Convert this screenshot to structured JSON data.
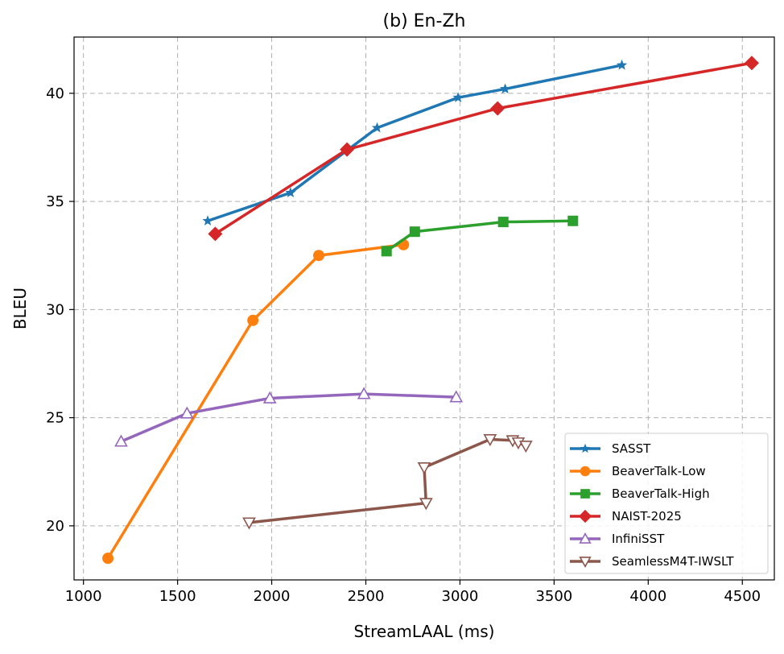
{
  "chart_data": {
    "type": "line",
    "title": "(b) En-Zh",
    "xlabel": "StreamLAAL (ms)",
    "ylabel": "BLEU",
    "xlim": [
      950,
      4670
    ],
    "ylim": [
      17.5,
      42.6
    ],
    "xticks": [
      1000,
      1500,
      2000,
      2500,
      3000,
      3500,
      4000,
      4500
    ],
    "yticks": [
      20,
      25,
      30,
      35,
      40
    ],
    "grid": true,
    "legend_position": "lower-right",
    "series": [
      {
        "name": "SASST",
        "color": "#1f77b4",
        "marker": "star",
        "x": [
          1660,
          2100,
          2560,
          2990,
          3240,
          3860
        ],
        "y": [
          34.1,
          35.4,
          38.4,
          39.8,
          40.2,
          41.3
        ]
      },
      {
        "name": "BeaverTalk-Low",
        "color": "#ff7f0e",
        "marker": "circle",
        "x": [
          1130,
          1900,
          2250,
          2700
        ],
        "y": [
          18.5,
          29.5,
          32.5,
          33.0
        ]
      },
      {
        "name": "BeaverTalk-High",
        "color": "#2ca02c",
        "marker": "square",
        "x": [
          2610,
          2760,
          3230,
          3600
        ],
        "y": [
          32.7,
          33.6,
          34.05,
          34.1
        ]
      },
      {
        "name": "NAIST-2025",
        "color": "#d62728",
        "marker": "diamond",
        "x": [
          1700,
          2400,
          3200,
          4550
        ],
        "y": [
          33.5,
          37.4,
          39.3,
          41.4
        ]
      },
      {
        "name": "InfiniSST",
        "color": "#9467bd",
        "marker": "triangle-up",
        "x": [
          1200,
          1550,
          1990,
          2490,
          2980
        ],
        "y": [
          23.9,
          25.2,
          25.9,
          26.1,
          25.95
        ]
      },
      {
        "name": "SeamlessM4T-IWSLT",
        "color": "#8c564b",
        "marker": "triangle-down",
        "x": [
          1880,
          2820,
          2810,
          3160,
          3280,
          3310,
          3350
        ],
        "y": [
          20.15,
          21.05,
          22.7,
          24.0,
          23.95,
          23.85,
          23.7
        ]
      }
    ]
  }
}
